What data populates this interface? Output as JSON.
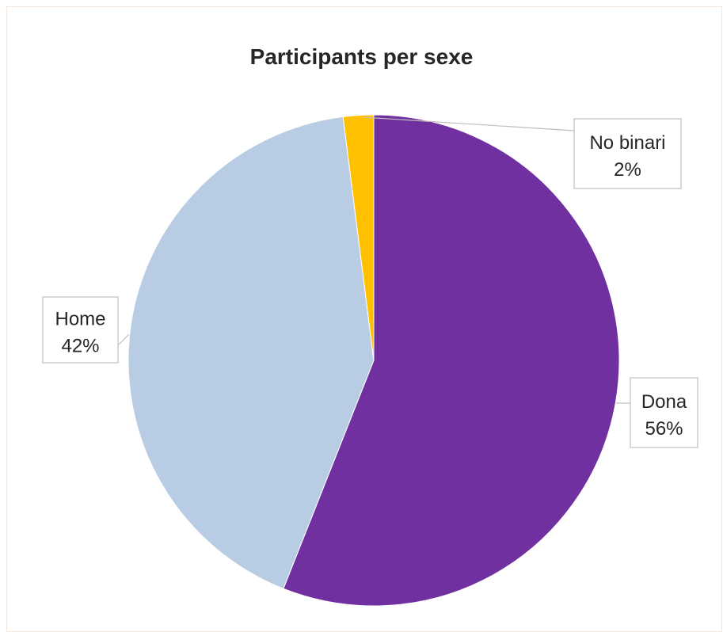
{
  "chart_data": {
    "type": "pie",
    "title": "Participants per sexe",
    "slices": [
      {
        "name": "Dona",
        "value": 56,
        "label": "56%",
        "color": "#7030a0"
      },
      {
        "name": "Home",
        "value": 42,
        "label": "42%",
        "color": "#b8cce4"
      },
      {
        "name": "No binari",
        "value": 2,
        "label": "2%",
        "color": "#ffc000"
      }
    ],
    "start_angle": "12 o'clock",
    "direction": "clockwise",
    "data_labels": "category name and percentage in callout boxes",
    "legend": "none"
  }
}
